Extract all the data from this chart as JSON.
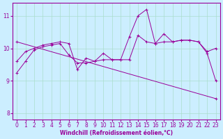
{
  "xlabel": "Windchill (Refroidissement éolien,°C)",
  "background_color": "#cceeff",
  "line_color": "#990099",
  "grid_color": "#aaddcc",
  "xlim": [
    -0.5,
    23.5
  ],
  "ylim": [
    7.8,
    11.4
  ],
  "yticks": [
    8,
    9,
    10,
    11
  ],
  "xticks": [
    0,
    1,
    2,
    3,
    4,
    5,
    6,
    7,
    8,
    9,
    10,
    11,
    12,
    13,
    14,
    15,
    16,
    17,
    18,
    19,
    20,
    21,
    22,
    23
  ],
  "line1_jagged": {
    "x": [
      0,
      1,
      2,
      3,
      4,
      5,
      6,
      7,
      8,
      9,
      10,
      11,
      12,
      13,
      14,
      15,
      16,
      17,
      18,
      19,
      20,
      21,
      22,
      23
    ],
    "y": [
      9.25,
      9.6,
      9.95,
      10.05,
      10.1,
      10.15,
      9.8,
      9.55,
      9.55,
      9.6,
      9.65,
      9.65,
      9.65,
      10.35,
      11.0,
      11.2,
      10.15,
      10.45,
      10.2,
      10.25,
      10.25,
      10.2,
      9.85,
      9.0
    ]
  },
  "line2_jagged": {
    "x": [
      0,
      1,
      2,
      3,
      4,
      5,
      6,
      7,
      8,
      9,
      10,
      11,
      12,
      13,
      14,
      15,
      16,
      17,
      18,
      19,
      20,
      21,
      22,
      23
    ],
    "y": [
      9.6,
      9.9,
      10.0,
      10.1,
      10.15,
      10.2,
      10.15,
      9.35,
      9.7,
      9.6,
      9.85,
      9.65,
      9.65,
      9.65,
      10.4,
      10.2,
      10.15,
      10.2,
      10.2,
      10.25,
      10.25,
      10.2,
      9.9,
      10.0
    ]
  },
  "line3_trend": {
    "x": [
      0,
      23
    ],
    "y": [
      10.2,
      8.45
    ]
  }
}
